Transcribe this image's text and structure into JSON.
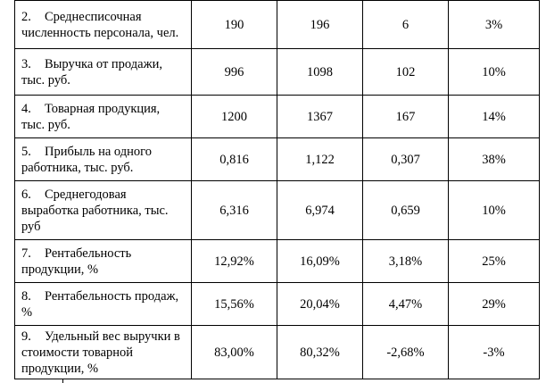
{
  "columns_count": 5,
  "rows": [
    {
      "num": "2.",
      "label_lines": [
        "Среднесписочная",
        "численность персонала, чел."
      ],
      "v1": "190",
      "v2": "196",
      "diff": "6",
      "pct": "3%"
    },
    {
      "num": "3.",
      "label_lines": [
        "Выручка от продажи,",
        "тыс. руб."
      ],
      "v1": "996",
      "v2": "1098",
      "diff": "102",
      "pct": "10%"
    },
    {
      "num": "4.",
      "label_lines": [
        "Товарная продукция,",
        "тыс. руб."
      ],
      "v1": "1200",
      "v2": "1367",
      "diff": "167",
      "pct": "14%"
    },
    {
      "num": "5.",
      "label_lines": [
        "Прибыль на одного",
        "работника, тыс. руб."
      ],
      "v1": "0,816",
      "v2": "1,122",
      "diff": "0,307",
      "pct": "38%"
    },
    {
      "num": "6.",
      "label_lines": [
        "Среднегодовая",
        "выработка работника, тыс.",
        "руб"
      ],
      "v1": "6,316",
      "v2": "6,974",
      "diff": "0,659",
      "pct": "10%"
    },
    {
      "num": "7.",
      "label_lines": [
        "Рентабельность",
        "продукции, %"
      ],
      "v1": "12,92%",
      "v2": "16,09%",
      "diff": "3,18%",
      "pct": "25%"
    },
    {
      "num": "8.",
      "label_lines": [
        "Рентабельность продаж,",
        "%"
      ],
      "v1": "15,56%",
      "v2": "20,04%",
      "diff": "4,47%",
      "pct": "29%"
    },
    {
      "num": "9.",
      "label_lines": [
        "Удельный вес выручки в",
        "стоимости товарной",
        "продукции, %"
      ],
      "v1": "83,00%",
      "v2": "80,32%",
      "diff": "-2,68%",
      "pct": "-3%"
    }
  ]
}
